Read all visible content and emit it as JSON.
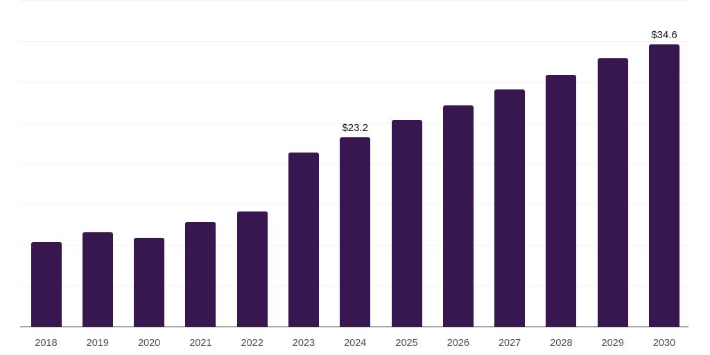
{
  "chart_data": {
    "type": "bar",
    "categories": [
      "2018",
      "2019",
      "2020",
      "2021",
      "2022",
      "2023",
      "2024",
      "2025",
      "2026",
      "2027",
      "2028",
      "2029",
      "2030"
    ],
    "values": [
      10.4,
      11.6,
      10.9,
      12.8,
      14.1,
      21.3,
      23.2,
      25.3,
      27.1,
      29.1,
      30.9,
      32.9,
      34.6
    ],
    "data_labels": [
      "",
      "",
      "",
      "",
      "",
      "",
      "$23.2",
      "",
      "",
      "",
      "",
      "",
      "$34.6"
    ],
    "value_prefix": "$",
    "xlabel": "",
    "ylabel": "",
    "ylim": [
      0,
      40
    ],
    "gridline_step": 5,
    "grid": true,
    "legend": "none"
  },
  "colors": {
    "bar": "#38164F",
    "gridline": "#F1F1F1",
    "axis_line": "#2B2B2B",
    "tick_label": "#4A4A4A",
    "data_label": "#111111",
    "background": "#FFFFFF"
  }
}
